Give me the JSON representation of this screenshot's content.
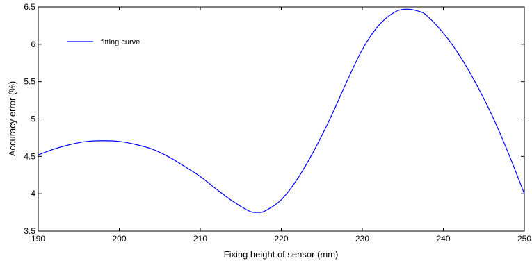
{
  "chart_data": {
    "type": "line",
    "xlabel": "Fixing height of sensor (mm)",
    "ylabel": "Accuracy error (%)",
    "xlim": [
      190,
      250
    ],
    "ylim": [
      3.5,
      6.5
    ],
    "x_ticks": [
      "190",
      "200",
      "210",
      "220",
      "230",
      "240",
      "250"
    ],
    "y_ticks": [
      "3.5",
      "4",
      "4.5",
      "5",
      "5.5",
      "6",
      "6.5"
    ],
    "grid": false,
    "legend_position": "top-left",
    "series": [
      {
        "name": "fitting curve",
        "color": "#0000ff",
        "x": [
          190,
          192,
          194,
          196,
          198,
          200,
          202,
          204,
          206,
          208,
          210,
          212,
          214,
          216,
          217,
          218,
          220,
          222,
          224,
          226,
          228,
          230,
          232,
          234,
          235.5,
          237,
          238,
          240,
          242,
          244,
          246,
          248,
          250
        ],
        "y": [
          4.52,
          4.6,
          4.66,
          4.7,
          4.71,
          4.7,
          4.66,
          4.6,
          4.5,
          4.37,
          4.23,
          4.06,
          3.9,
          3.77,
          3.75,
          3.77,
          3.92,
          4.2,
          4.57,
          5.0,
          5.48,
          5.93,
          6.25,
          6.43,
          6.47,
          6.44,
          6.38,
          6.15,
          5.85,
          5.48,
          5.05,
          4.55,
          4.0
        ]
      }
    ]
  }
}
